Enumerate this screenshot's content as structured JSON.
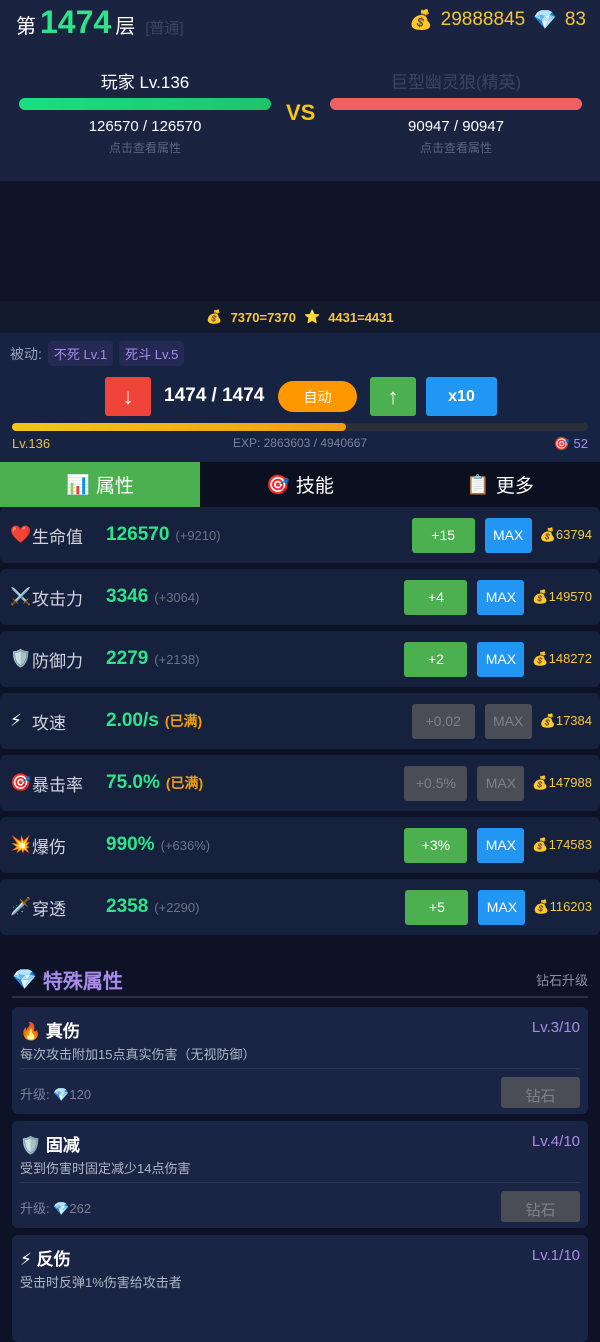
{
  "header": {
    "floor_prefix": "第",
    "floor": "1474",
    "floor_suffix": "层",
    "floor_type": "[普通]",
    "gold_icon": "money-bag-icon",
    "gold": "29888845",
    "diamond_icon": "gem-icon",
    "diamonds": "83"
  },
  "player": {
    "name": "玩家 Lv.136",
    "hp": "126570 / 126570",
    "hp_fraction": 1.0,
    "hint": "点击查看属性",
    "bar_color": "#19e07f"
  },
  "enemy": {
    "name": "巨型幽灵狼(精英)",
    "hp": "90947 / 90947",
    "hp_fraction": 1.0,
    "hint": "点击查看属性",
    "bar_color": "#f06262"
  },
  "vs": "VS",
  "reward": {
    "gold": "7370=7370",
    "stars": "4431=4431"
  },
  "passive": {
    "label": "被动:",
    "tags": [
      "不死 Lv.1",
      "死斗 Lv.5"
    ]
  },
  "controls": {
    "down": "↓",
    "floor_progress": "1474 / 1474",
    "auto": "自动",
    "up": "↑",
    "multiplier": "x10"
  },
  "exp": {
    "level": "Lv.136",
    "text": "EXP: 2863603 / 4940667",
    "fraction": 0.58,
    "points": "52"
  },
  "tabs": [
    {
      "icon": "📊",
      "label": "属性",
      "active": true
    },
    {
      "icon": "🎯",
      "label": "技能"
    },
    {
      "icon": "📋",
      "label": "更多"
    }
  ],
  "stats": [
    {
      "icon": "❤️",
      "label": "生命值",
      "value": "126570",
      "bonus": "(+9210)",
      "up": "+15",
      "max": "MAX",
      "cost": "63794",
      "disabled": false
    },
    {
      "icon": "⚔️",
      "label": "攻击力",
      "value": "3346",
      "bonus": "(+3064)",
      "up": "+4",
      "max": "MAX",
      "cost": "149570",
      "disabled": false
    },
    {
      "icon": "🛡️",
      "label": "防御力",
      "value": "2279",
      "bonus": "(+2138)",
      "up": "+2",
      "max": "MAX",
      "cost": "148272",
      "disabled": false
    },
    {
      "icon": "⚡",
      "label": "攻速",
      "value": "2.00/s",
      "full": "(已满)",
      "up": "+0.02",
      "max": "MAX",
      "cost": "17384",
      "disabled": true
    },
    {
      "icon": "🎯",
      "label": "暴击率",
      "value": "75.0%",
      "full": "(已满)",
      "up": "+0.5%",
      "max": "MAX",
      "cost": "147988",
      "disabled": true
    },
    {
      "icon": "💥",
      "label": "爆伤",
      "value": "990%",
      "bonus": "(+636%)",
      "up": "+3%",
      "max": "MAX",
      "cost": "174583",
      "disabled": false
    },
    {
      "icon": "🗡️",
      "label": "穿透",
      "value": "2358",
      "bonus": "(+2290)",
      "up": "+5",
      "max": "MAX",
      "cost": "116203",
      "disabled": false
    }
  ],
  "special": {
    "icon": "💎",
    "title": "特殊属性",
    "subtitle": "钻石升级",
    "items": [
      {
        "icon": "🔥",
        "name": "真伤",
        "level": "Lv.3/10",
        "desc": "每次攻击附加15点真实伤害（无视防御）",
        "cost": "升级: 💎120",
        "button": "钻石"
      },
      {
        "icon": "🛡️",
        "name": "固减",
        "level": "Lv.4/10",
        "desc": "受到伤害时固定减少14点伤害",
        "cost": "升级: 💎262",
        "button": "钻石"
      },
      {
        "icon": "⚡",
        "name": "反伤",
        "level": "Lv.1/10",
        "desc": "受击时反弹1%伤害给攻击者"
      }
    ]
  }
}
